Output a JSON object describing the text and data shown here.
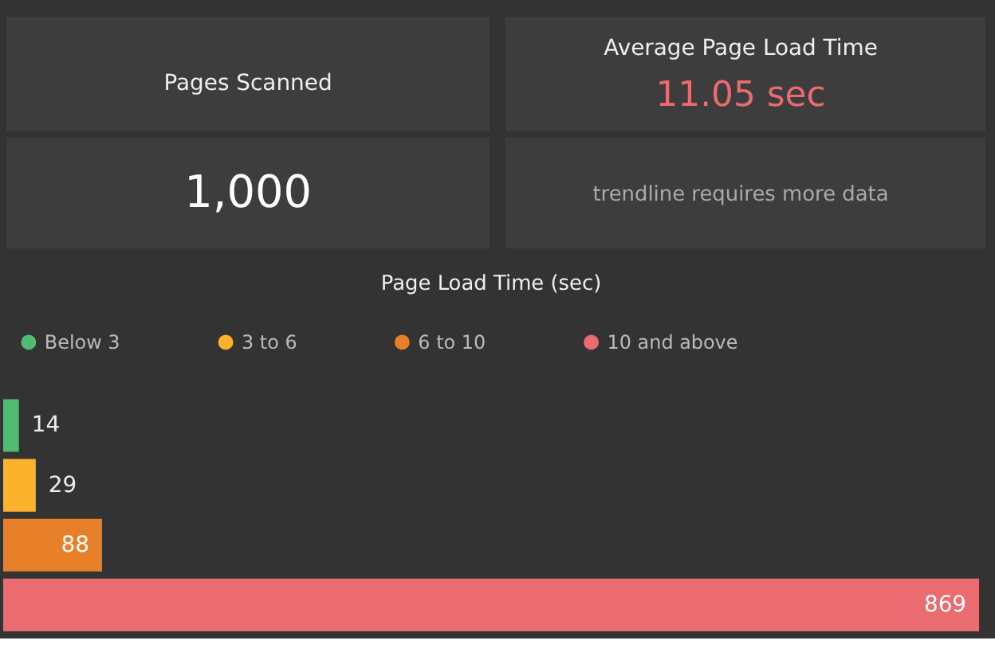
{
  "chart_data": [
    {
      "type": "other",
      "annotations": [
        "Pages Scanned",
        "1,000",
        "Average Page Load Time",
        "11.05 sec",
        "trendline requires more data"
      ]
    },
    {
      "type": "bar",
      "orientation": "horizontal",
      "title": "Page Load Time (sec)",
      "categories": [
        null,
        null,
        null,
        null
      ],
      "series": [
        {
          "name": "Below 3",
          "color": "#52bb72",
          "values": [
            14,
            null,
            null,
            null
          ]
        },
        {
          "name": "3 to 6",
          "color": "#fbb22c",
          "values": [
            null,
            29,
            null,
            null
          ]
        },
        {
          "name": "6 to 10",
          "color": "#e8802a",
          "values": [
            null,
            null,
            88,
            null
          ]
        },
        {
          "name": "10 and above",
          "color": "#ea6b70",
          "values": [
            null,
            null,
            null,
            869
          ]
        }
      ],
      "stacked": true,
      "data_labels": true,
      "legend": "top",
      "tick_labels": false
    }
  ]
}
